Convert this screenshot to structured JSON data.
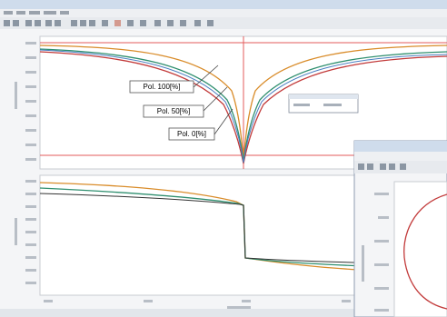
{
  "annotations": [
    {
      "label": "Pol. 100[%]"
    },
    {
      "label": "Pol. 50[%]"
    },
    {
      "label": "Pol. 0[%]"
    }
  ]
}
